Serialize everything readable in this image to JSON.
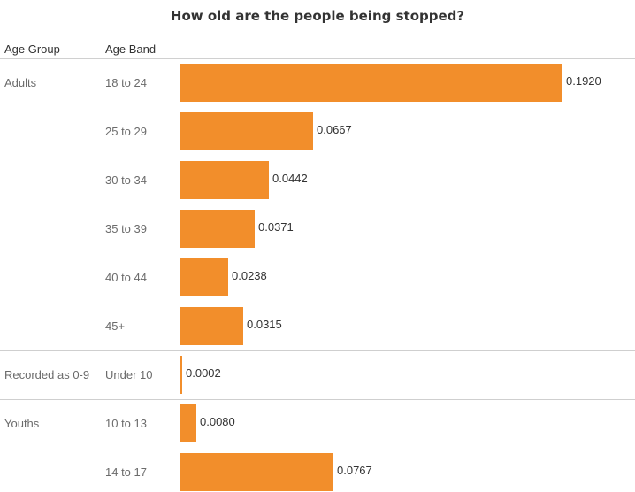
{
  "chart_data": {
    "type": "bar",
    "orientation": "horizontal",
    "title": "How old are the people being stopped?",
    "row_headers": [
      "Age Group",
      "Age Band"
    ],
    "groups": [
      {
        "name": "Adults",
        "bands": [
          {
            "label": "18 to 24",
            "value": 0.192,
            "display": "0.1920"
          },
          {
            "label": "25 to 29",
            "value": 0.0667,
            "display": "0.0667"
          },
          {
            "label": "30 to 34",
            "value": 0.0442,
            "display": "0.0442"
          },
          {
            "label": "35 to 39",
            "value": 0.0371,
            "display": "0.0371"
          },
          {
            "label": "40 to 44",
            "value": 0.0238,
            "display": "0.0238"
          },
          {
            "label": "45+",
            "value": 0.0315,
            "display": "0.0315"
          }
        ]
      },
      {
        "name": "Recorded as 0-9",
        "bands": [
          {
            "label": "Under 10",
            "value": 0.0002,
            "display": "0.0002"
          }
        ]
      },
      {
        "name": "Youths",
        "bands": [
          {
            "label": "10 to 13",
            "value": 0.008,
            "display": "0.0080"
          },
          {
            "label": "14 to 17",
            "value": 0.0767,
            "display": "0.0767"
          }
        ]
      }
    ],
    "bar_color": "#f28e2b"
  }
}
